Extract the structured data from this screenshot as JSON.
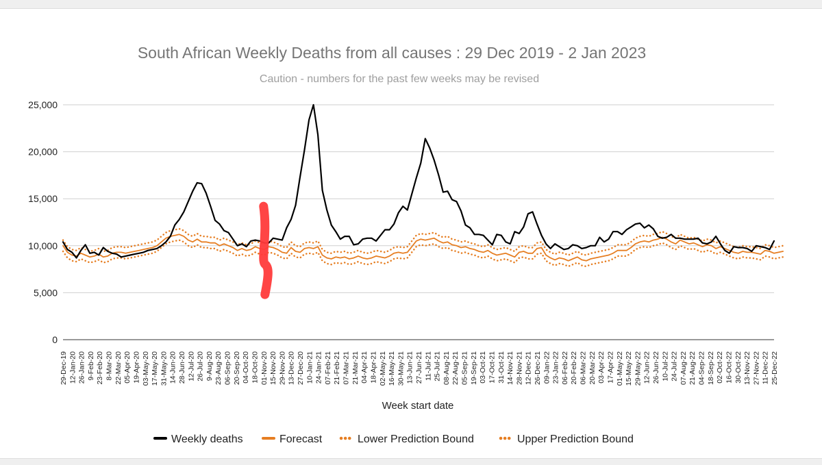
{
  "chart_data": {
    "type": "line",
    "title": "South African Weekly Deaths from all causes : 29 Dec 2019 - 2 Jan 2023",
    "subtitle": "Caution - numbers for the past few weeks may be revised",
    "xlabel": "Week start date",
    "ylabel": "",
    "ylim": [
      0,
      25000
    ],
    "yticks": [
      0,
      5000,
      10000,
      15000,
      20000,
      25000
    ],
    "ytick_labels": [
      "0",
      "5,000",
      "10,000",
      "15,000",
      "20,000",
      "25,000"
    ],
    "grid": true,
    "legend_position": "bottom",
    "x_tick_labels": [
      "29-Dec-19",
      "12-Jan-20",
      "26-Jan-20",
      "9-Feb-20",
      "23-Feb-20",
      "8-Mar-20",
      "22-Mar-20",
      "05-Apr-20",
      "19-Apr-20",
      "03-May-20",
      "17-May-20",
      "31-May-20",
      "14-Jun-20",
      "28-Jun-20",
      "12-Jul-20",
      "26-Jul-20",
      "9-Aug-20",
      "23-Aug-20",
      "06-Sep-20",
      "20-Sep-20",
      "04-Oct-20",
      "18-Oct-20",
      "01-Nov-20",
      "15-Nov-20",
      "29-Nov-20",
      "13-Dec-20",
      "27-Dec-20",
      "10-Jan-21",
      "24-Jan-21",
      "07-Feb-21",
      "21-Feb-21",
      "07-Mar-21",
      "21-Mar-21",
      "04-Apr-21",
      "18-Apr-21",
      "02-May-21",
      "16-May-21",
      "30-May-21",
      "13-Jun-21",
      "27-Jun-21",
      "11-Jul-21",
      "25-Jul-21",
      "08-Aug-21",
      "22-Aug-21",
      "05-Sep-21",
      "19-Sep-21",
      "03-Oct-21",
      "17-Oct-21",
      "31-Oct-21",
      "14-Nov-21",
      "28-Nov-21",
      "12-Dec-21",
      "26-Dec-21",
      "09-Jan-22",
      "23-Jan-22",
      "06-Feb-22",
      "20-Feb-22",
      "06-Mar-22",
      "20-Mar-22",
      "03-Apr-22",
      "17-Apr-22",
      "01-May-22",
      "15-May-22",
      "29-May-22",
      "12-Jun-22",
      "26-Jun-22",
      "10-Jul-22",
      "24-Jul-22",
      "07-Aug-22",
      "21-Aug-22",
      "04-Sep-22",
      "18-Sep-22",
      "02-Oct-22",
      "16-Oct-22",
      "30-Oct-22",
      "13-Nov-22",
      "27-Nov-22",
      "11-Dec-22",
      "25-Dec-22"
    ],
    "series": [
      {
        "name": "Weekly deaths",
        "color": "#000000",
        "style": "solid",
        "values": [
          10400,
          9600,
          9300,
          8700,
          9500,
          10100,
          9200,
          9300,
          9000,
          9800,
          9400,
          9200,
          9100,
          8800,
          8900,
          9000,
          9100,
          9200,
          9300,
          9500,
          9600,
          9700,
          10000,
          10400,
          11000,
          12200,
          12800,
          13600,
          14700,
          15800,
          16700,
          16600,
          15600,
          14200,
          12700,
          12300,
          11600,
          11400,
          10700,
          10000,
          10200,
          9900,
          10500,
          10600,
          10500,
          10300,
          10300,
          10800,
          10700,
          10600,
          11900,
          12800,
          14300,
          17300,
          20200,
          23400,
          25000,
          21800,
          15900,
          13800,
          12200,
          11500,
          10700,
          11000,
          11000,
          10100,
          10200,
          10700,
          10800,
          10800,
          10500,
          11100,
          11700,
          11700,
          12300,
          13500,
          14200,
          13800,
          15500,
          17200,
          18800,
          21400,
          20400,
          19100,
          17500,
          15700,
          15800,
          14900,
          14700,
          13700,
          12200,
          11900,
          11200,
          11200,
          11100,
          10600,
          10100,
          11200,
          11100,
          10400,
          10200,
          11500,
          11300,
          12000,
          13400,
          13600,
          12300,
          11100,
          10200,
          9700,
          10200,
          9900,
          9600,
          9700,
          10100,
          10000,
          9700,
          9800,
          10000,
          10000,
          10900,
          10400,
          10700,
          11500,
          11500,
          11200,
          11700,
          12000,
          12300,
          12400,
          11900,
          12200,
          11800,
          11000,
          10800,
          10900,
          11200,
          10800,
          10800,
          10700,
          10700,
          10700,
          10800,
          10300,
          10200,
          10400,
          11000,
          10200,
          9500,
          9200,
          9900,
          9800,
          9800,
          9700,
          9400,
          10000,
          9900,
          9800,
          9600,
          10500
        ]
      },
      {
        "name": "Forecast",
        "color": "#e67e22",
        "style": "solid",
        "values": [
          10000,
          9300,
          9000,
          8900,
          9200,
          9000,
          8800,
          8900,
          9100,
          8800,
          8900,
          9200,
          9300,
          9300,
          9200,
          9300,
          9400,
          9500,
          9600,
          9700,
          9800,
          10000,
          10400,
          10800,
          11000,
          11100,
          11200,
          11000,
          10600,
          10400,
          10700,
          10400,
          10400,
          10300,
          10300,
          10000,
          10200,
          10000,
          9800,
          9500,
          9700,
          9500,
          9600,
          9900,
          9700,
          9600,
          9900,
          9800,
          9600,
          9300,
          9200,
          9800,
          9400,
          9300,
          9700,
          9800,
          9700,
          9900,
          9000,
          8700,
          8600,
          8800,
          8700,
          8800,
          8600,
          8700,
          8900,
          8700,
          8600,
          8700,
          8900,
          8800,
          8700,
          8900,
          9200,
          9300,
          9200,
          9300,
          9900,
          10500,
          10700,
          10600,
          10700,
          10800,
          10500,
          10300,
          10400,
          10100,
          10000,
          9800,
          9900,
          9700,
          9600,
          9400,
          9300,
          9500,
          9200,
          9000,
          9100,
          9200,
          9000,
          8800,
          9300,
          9400,
          9200,
          9200,
          9700,
          9800,
          9000,
          8700,
          8500,
          8700,
          8600,
          8400,
          8600,
          8800,
          8500,
          8400,
          8600,
          8700,
          8800,
          8900,
          9000,
          9200,
          9500,
          9500,
          9500,
          9800,
          10200,
          10400,
          10500,
          10400,
          10600,
          10700,
          10900,
          10700,
          10400,
          10200,
          10600,
          10400,
          10200,
          10300,
          10100,
          9900,
          10100,
          10000,
          9700,
          9900,
          9700,
          9500,
          9300,
          9200,
          9400,
          9300,
          9300,
          9200,
          9100,
          9500,
          9400,
          9200,
          9300,
          9400
        ]
      },
      {
        "name": "Lower Prediction Bound",
        "color": "#e67e22",
        "style": "dotted",
        "values": [
          9400,
          8700,
          8400,
          8300,
          8600,
          8400,
          8200,
          8300,
          8500,
          8200,
          8300,
          8600,
          8700,
          8700,
          8600,
          8700,
          8800,
          8900,
          9000,
          9100,
          9200,
          9400,
          9800,
          10200,
          10400,
          10500,
          10600,
          10400,
          10000,
          9800,
          10100,
          9800,
          9800,
          9700,
          9700,
          9400,
          9600,
          9400,
          9200,
          8900,
          9100,
          8900,
          9000,
          9300,
          9100,
          9000,
          9300,
          9200,
          9000,
          8700,
          8600,
          9200,
          8800,
          8700,
          9100,
          9200,
          9100,
          9300,
          8400,
          8100,
          8000,
          8200,
          8100,
          8200,
          8000,
          8100,
          8300,
          8100,
          8000,
          8100,
          8300,
          8200,
          8100,
          8300,
          8600,
          8700,
          8600,
          8700,
          9300,
          9900,
          10100,
          10000,
          10100,
          10200,
          9900,
          9700,
          9800,
          9500,
          9400,
          9200,
          9300,
          9100,
          9000,
          8800,
          8700,
          8900,
          8600,
          8400,
          8500,
          8600,
          8400,
          8200,
          8700,
          8800,
          8600,
          8600,
          9100,
          9200,
          8400,
          8100,
          7900,
          8100,
          8000,
          7800,
          8000,
          8200,
          7900,
          7800,
          8000,
          8100,
          8200,
          8300,
          8400,
          8600,
          8900,
          8900,
          8900,
          9200,
          9600,
          9800,
          9900,
          9800,
          10000,
          10100,
          10300,
          10100,
          9800,
          9600,
          10000,
          9800,
          9600,
          9700,
          9500,
          9300,
          9500,
          9400,
          9100,
          9300,
          9100,
          8900,
          8700,
          8600,
          8800,
          8700,
          8700,
          8600,
          8500,
          8900,
          8800,
          8600,
          8700,
          8800
        ]
      },
      {
        "name": "Upper Prediction Bound",
        "color": "#e67e22",
        "style": "dotted",
        "values": [
          10600,
          9900,
          9600,
          9500,
          9800,
          9600,
          9400,
          9500,
          9700,
          9400,
          9500,
          9800,
          9900,
          9900,
          9800,
          9900,
          10000,
          10100,
          10200,
          10300,
          10400,
          10600,
          11000,
          11400,
          11600,
          11700,
          11800,
          11600,
          11200,
          11000,
          11300,
          11000,
          11000,
          10900,
          10900,
          10600,
          10800,
          10600,
          10400,
          10100,
          10300,
          10100,
          10200,
          10500,
          10300,
          10200,
          10500,
          10400,
          10200,
          9900,
          9800,
          10400,
          10000,
          9900,
          10300,
          10400,
          10300,
          10500,
          9600,
          9300,
          9200,
          9400,
          9300,
          9400,
          9200,
          9300,
          9500,
          9300,
          9200,
          9300,
          9500,
          9400,
          9300,
          9500,
          9800,
          9900,
          9800,
          9900,
          10500,
          11100,
          11300,
          11200,
          11300,
          11400,
          11100,
          10900,
          11000,
          10700,
          10600,
          10400,
          10500,
          10300,
          10200,
          10000,
          9900,
          10100,
          9800,
          9600,
          9700,
          9800,
          9600,
          9400,
          9900,
          10000,
          9800,
          9800,
          10300,
          10400,
          9600,
          9300,
          9100,
          9300,
          9200,
          9000,
          9200,
          9400,
          9100,
          9000,
          9200,
          9300,
          9400,
          9500,
          9600,
          9800,
          10100,
          10100,
          10100,
          10400,
          10800,
          11000,
          11100,
          11000,
          11200,
          11300,
          11500,
          11300,
          11000,
          10800,
          11200,
          11000,
          10800,
          10900,
          10700,
          10500,
          10700,
          10600,
          10300,
          10500,
          10300,
          10100,
          9900,
          9800,
          10000,
          9900,
          9900,
          9800,
          9700,
          10100,
          10000,
          9800,
          9900,
          10000
        ]
      }
    ],
    "annotation": {
      "type": "hand-drawn red vertical stroke",
      "color": "#ff3b3b",
      "x_label": "01-Nov-20",
      "y_range": [
        4800,
        14200
      ]
    }
  }
}
